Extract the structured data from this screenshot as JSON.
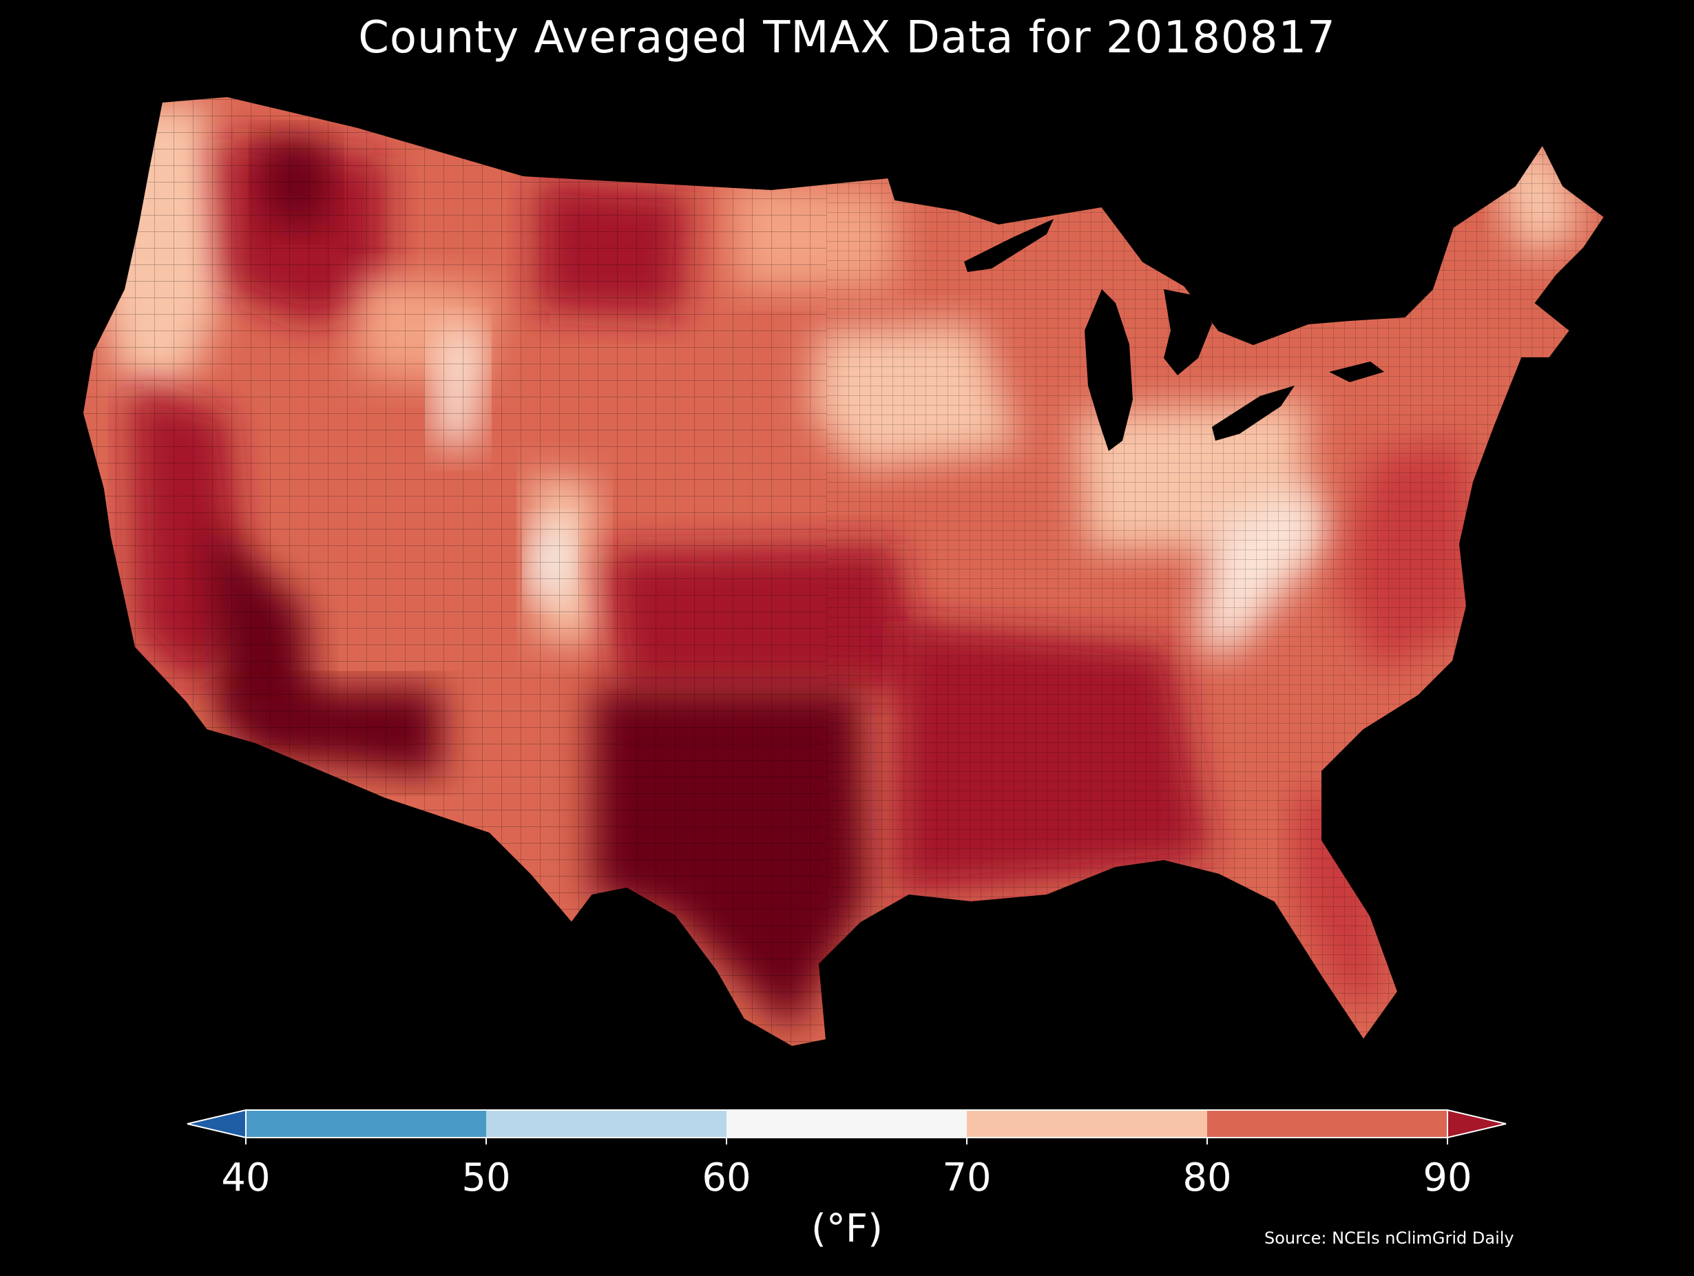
{
  "title": "County Averaged TMAX Data for 20180817",
  "colorbar": {
    "ticks": [
      "40",
      "50",
      "60",
      "70",
      "80",
      "90"
    ],
    "units": "(°F)",
    "bins": [
      {
        "from": 40,
        "to": 50,
        "color": "#4a9ac8"
      },
      {
        "from": 50,
        "to": 60,
        "color": "#b7d8ea"
      },
      {
        "from": 60,
        "to": 70,
        "color": "#f6f6f6"
      },
      {
        "from": 70,
        "to": 80,
        "color": "#f8c4a8"
      },
      {
        "from": 80,
        "to": 90,
        "color": "#db6753"
      }
    ],
    "under_color": "#1f5da4",
    "over_color": "#a51729"
  },
  "source": "Source: NCEIs nClimGrid Daily",
  "map": {
    "colors": {
      "background": "#000000",
      "very_hot": "#6b0013",
      "hot": "#a51729",
      "warm": "#c93b3d",
      "mild": "#db6753",
      "cool": "#f3a283",
      "cooler": "#f8c4a8",
      "coolest": "#fbe3d6",
      "snow": "#f6f6f6"
    }
  }
}
